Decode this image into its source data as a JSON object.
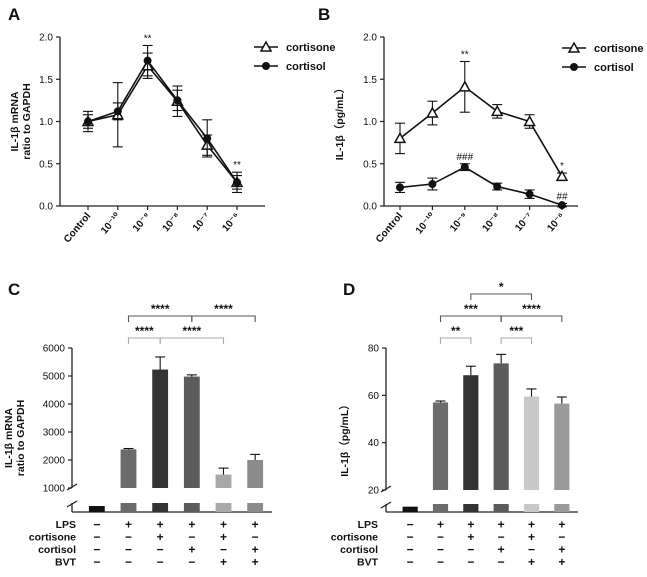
{
  "chart_data": [
    {
      "panel": "A",
      "type": "line",
      "ylabel_lines": [
        "IL-1β mRNA",
        "ratio to GAPDH"
      ],
      "ylim": [
        0,
        2.0
      ],
      "yticks": [
        "0.0",
        "0.5",
        "1.0",
        "1.5",
        "2.0"
      ],
      "categories": [
        "Control",
        "10⁻¹⁰",
        "10⁻⁹",
        "10⁻⁸",
        "10⁻⁷",
        "10⁻⁶"
      ],
      "series": [
        {
          "name": "cortisone",
          "marker": "open-triangle",
          "values": [
            1.0,
            1.08,
            1.66,
            1.24,
            0.72,
            0.28
          ],
          "errors": [
            0.08,
            0.38,
            0.15,
            0.18,
            0.12,
            0.08
          ]
        },
        {
          "name": "cortisol",
          "marker": "filled-circle",
          "values": [
            1.0,
            1.12,
            1.72,
            1.25,
            0.8,
            0.28
          ],
          "errors": [
            0.12,
            0.1,
            0.18,
            0.12,
            0.22,
            0.12
          ]
        }
      ],
      "annotations": [
        {
          "category_index": 2,
          "text": "**"
        },
        {
          "category_index": 5,
          "text": "**"
        }
      ]
    },
    {
      "panel": "B",
      "type": "line",
      "ylabel": "IL-1β（pg/mL）",
      "ylim": [
        0,
        2.0
      ],
      "yticks": [
        "0.0",
        "0.5",
        "1.0",
        "1.5",
        "2.0"
      ],
      "categories": [
        "Control",
        "10⁻¹⁰",
        "10⁻⁹",
        "10⁻⁸",
        "10⁻⁷",
        "10⁻⁶"
      ],
      "series": [
        {
          "name": "cortisone",
          "marker": "open-triangle",
          "values": [
            0.8,
            1.1,
            1.41,
            1.12,
            1.0,
            0.35
          ],
          "errors": [
            0.18,
            0.14,
            0.3,
            0.08,
            0.08,
            0.04
          ]
        },
        {
          "name": "cortisol",
          "marker": "filled-circle",
          "values": [
            0.22,
            0.26,
            0.46,
            0.23,
            0.14,
            0.01
          ],
          "errors": [
            0.06,
            0.07,
            0.04,
            0.04,
            0.05,
            0.02
          ]
        }
      ],
      "annotations": [
        {
          "category_index": 2,
          "text": "**",
          "series": "cortisone"
        },
        {
          "category_index": 5,
          "text": "*",
          "series": "cortisone"
        },
        {
          "category_index": 2,
          "text": "###",
          "series": "cortisol"
        },
        {
          "category_index": 5,
          "text": "##",
          "series": "cortisol"
        }
      ]
    },
    {
      "panel": "C",
      "type": "bar",
      "ylabel_lines": [
        "IL-1β mRNA",
        "ratio to GAPDH"
      ],
      "ylim": [
        0,
        6000
      ],
      "axis_break": [
        1.5,
        1000
      ],
      "yticks": [
        "1000",
        "2000",
        "3000",
        "4000",
        "5000",
        "6000"
      ],
      "bars": [
        {
          "value": 1.0,
          "error": 0.0,
          "color": "#111111"
        },
        {
          "value": 2380,
          "error": 30,
          "color": "#6b6b6b"
        },
        {
          "value": 5230,
          "error": 450,
          "color": "#333333"
        },
        {
          "value": 4980,
          "error": 60,
          "color": "#5c5c5c"
        },
        {
          "value": 1480,
          "error": 230,
          "color": "#a8a8a8"
        },
        {
          "value": 2000,
          "error": 200,
          "color": "#8c8c8c"
        }
      ],
      "significance": [
        {
          "from": 1,
          "to": 3,
          "text": "****",
          "level": 1
        },
        {
          "from": 3,
          "to": 5,
          "text": "****",
          "level": 1
        },
        {
          "from": 1,
          "to": 2,
          "text": "****",
          "level": 0
        },
        {
          "from": 2,
          "to": 4,
          "text": "****",
          "level": 0
        }
      ]
    },
    {
      "panel": "D",
      "type": "bar",
      "ylabel": "IL-1β（pg/mL）",
      "ylim": [
        0,
        80
      ],
      "axis_break": [
        1.2,
        20
      ],
      "yticks": [
        "20",
        "40",
        "60",
        "80"
      ],
      "bars": [
        {
          "value": 0.8,
          "error": 0.0,
          "color": "#111111"
        },
        {
          "value": 57,
          "error": 0.6,
          "color": "#6b6b6b"
        },
        {
          "value": 68.5,
          "error": 3.8,
          "color": "#333333"
        },
        {
          "value": 73.5,
          "error": 3.8,
          "color": "#5c5c5c"
        },
        {
          "value": 59.5,
          "error": 3.2,
          "color": "#c8c8c8"
        },
        {
          "value": 56.5,
          "error": 2.8,
          "color": "#9a9a9a"
        }
      ],
      "significance": [
        {
          "from": 2,
          "to": 4,
          "text": "*",
          "level": 2
        },
        {
          "from": 1,
          "to": 3,
          "text": "***",
          "level": 1
        },
        {
          "from": 3,
          "to": 5,
          "text": "****",
          "level": 1
        },
        {
          "from": 1,
          "to": 2,
          "text": "**",
          "level": 0
        },
        {
          "from": 3,
          "to": 4,
          "text": "***",
          "level": 0
        }
      ]
    }
  ],
  "panel_labels": [
    "A",
    "B",
    "C",
    "D"
  ],
  "treatment_rows": [
    "LPS",
    "cortisone",
    "cortisol",
    "BVT"
  ],
  "treatment_matrix": [
    [
      "−",
      "+",
      "+",
      "+",
      "+",
      "+"
    ],
    [
      "−",
      "−",
      "+",
      "−",
      "+",
      "−"
    ],
    [
      "−",
      "−",
      "−",
      "+",
      "−",
      "+"
    ],
    [
      "−",
      "−",
      "−",
      "−",
      "+",
      "+"
    ]
  ]
}
